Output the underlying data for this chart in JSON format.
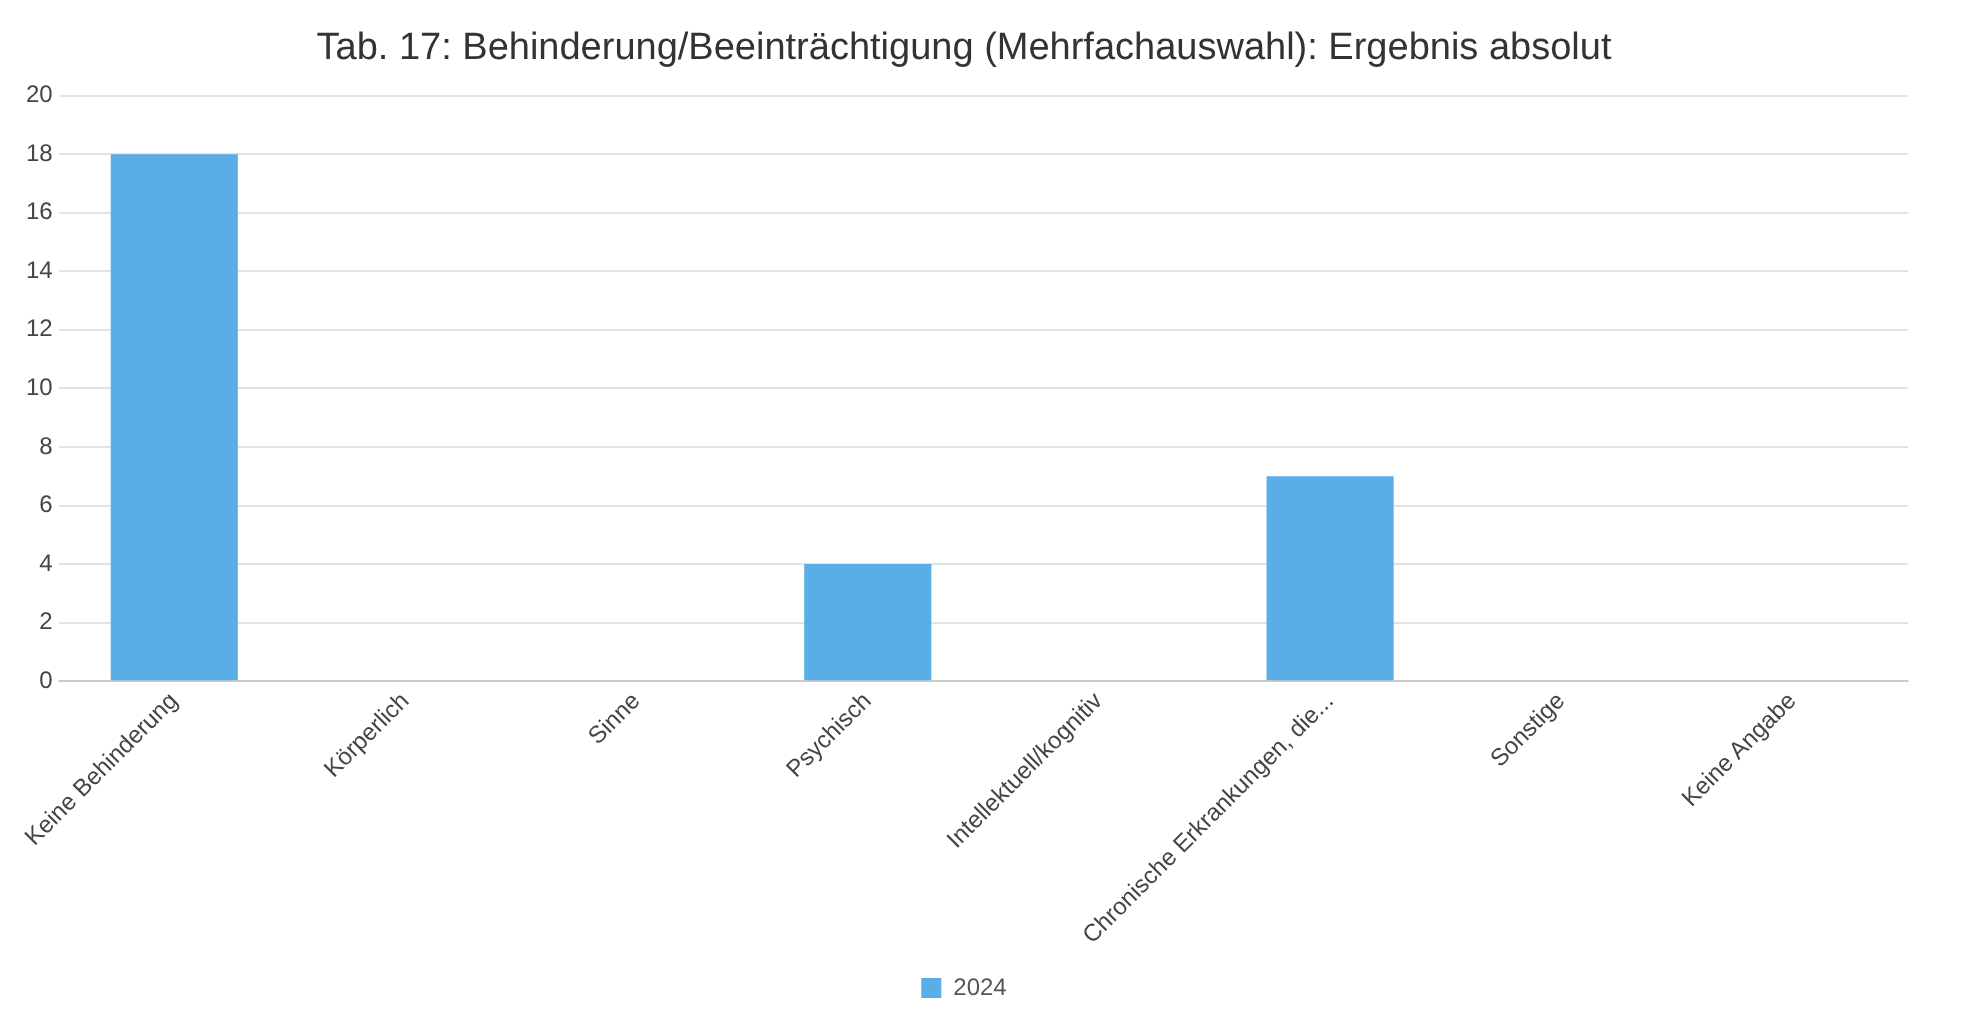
{
  "chart_data": {
    "type": "bar",
    "title": "Tab. 17: Behinderung/Beeinträchtigung (Mehrfachauswahl): Ergebnis absolut",
    "categories": [
      "Keine Behinderung",
      "Körperlich",
      "Sinne",
      "Psychisch",
      "Intellektuell/kognitiv",
      "Chronische Erkrankungen, die...",
      "Sonstige",
      "Keine Angabe"
    ],
    "series": [
      {
        "name": "2024",
        "color": "#5aaee8",
        "values": [
          18,
          0,
          0,
          4,
          0,
          7,
          0,
          0
        ]
      }
    ],
    "ylim": [
      0,
      20
    ],
    "yticks": [
      0,
      2,
      4,
      6,
      8,
      10,
      12,
      14,
      16,
      18,
      20
    ],
    "grid": "y",
    "legend": "bottom"
  }
}
